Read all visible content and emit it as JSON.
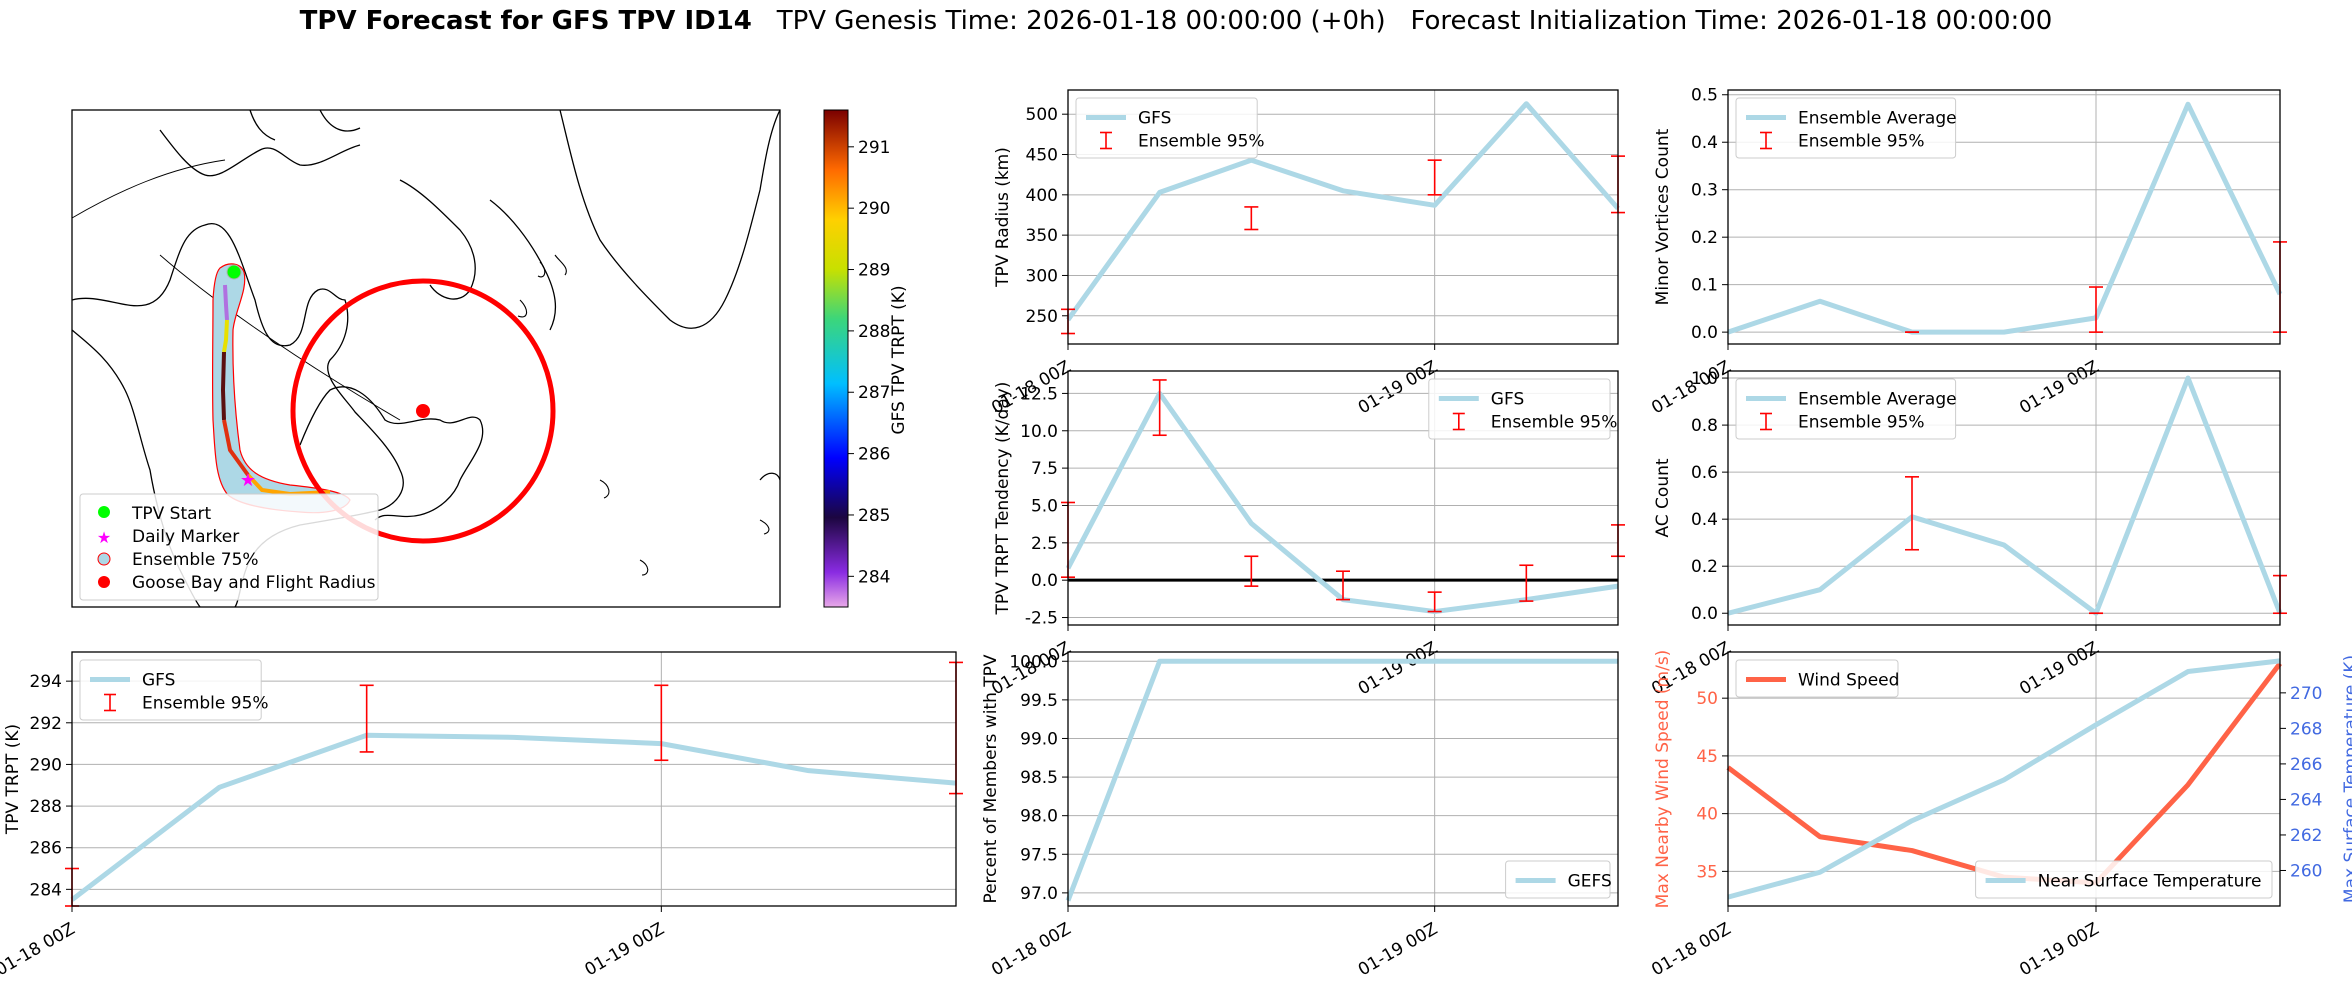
{
  "header": {
    "title_bold": "TPV Forecast for GFS TPV ID14",
    "genesis": "TPV Genesis Time: 2026-01-18 00:00:00 (+0h)",
    "init": "Forecast Initialization Time: 2026-01-18 00:00:00"
  },
  "colors": {
    "series": "#add8e6",
    "errorbar": "#ff0000",
    "wind": "#ff6347",
    "temp_axis": "#4169e1",
    "grid": "#b0b0b0"
  },
  "map": {
    "legend": [
      "TPV Start",
      "Daily Marker",
      "Ensemble 75%",
      "Goose Bay and Flight Radius"
    ],
    "legend_colors": [
      "#00ff00",
      "#ff00ff",
      "#add8e6",
      "#ff0000"
    ],
    "colorbar": {
      "label": "GFS TPV TRPT (K)",
      "ticks": [
        "284",
        "285",
        "286",
        "287",
        "288",
        "289",
        "290",
        "291"
      ],
      "min": 283.5,
      "max": 291.6
    }
  },
  "time_ticks": [
    "01-18 00Z",
    "01-19 00Z"
  ],
  "chart_data": [
    {
      "id": "radius",
      "type": "line",
      "ylabel": "TPV Radius (km)",
      "x": [
        0,
        1,
        2,
        3,
        4,
        5,
        6
      ],
      "ylim": [
        215,
        530
      ],
      "yticks": [
        250,
        300,
        350,
        400,
        450,
        500
      ],
      "series": [
        {
          "name": "GFS",
          "values": [
            245,
            403,
            443,
            405,
            387,
            513,
            383
          ]
        }
      ],
      "errorbars": [
        {
          "x": 0,
          "low": 228,
          "high": 258
        },
        {
          "x": 2,
          "low": 357,
          "high": 385
        },
        {
          "x": 4,
          "low": 400,
          "high": 443
        },
        {
          "x": 6,
          "low": 378,
          "high": 448
        }
      ],
      "legend": [
        "GFS",
        "Ensemble 95%"
      ],
      "legend_pos": "top-left",
      "xticklabels": [
        "01-18 00Z",
        "01-19 00Z"
      ]
    },
    {
      "id": "minor",
      "type": "line",
      "ylabel": "Minor Vortices Count",
      "x": [
        0,
        1,
        2,
        3,
        4,
        5,
        6
      ],
      "ylim": [
        -0.025,
        0.51
      ],
      "yticks": [
        0.0,
        0.1,
        0.2,
        0.3,
        0.4,
        0.5
      ],
      "series": [
        {
          "name": "Ensemble Average",
          "values": [
            0.0,
            0.065,
            0.0,
            0.0,
            0.03,
            0.48,
            0.08
          ]
        }
      ],
      "errorbars": [
        {
          "x": 2,
          "low": 0.0,
          "high": 0.0
        },
        {
          "x": 4,
          "low": 0.0,
          "high": 0.095
        },
        {
          "x": 6,
          "low": 0.0,
          "high": 0.19
        }
      ],
      "legend": [
        "Ensemble Average",
        "Ensemble 95%"
      ],
      "legend_pos": "top-left",
      "xticklabels": [
        "01-18 00Z",
        "01-19 00Z"
      ]
    },
    {
      "id": "tendency",
      "type": "line",
      "ylabel": "TPV TRPT Tendency (K/day)",
      "x": [
        0,
        1,
        2,
        3,
        4,
        5,
        6
      ],
      "ylim": [
        -3.0,
        14.0
      ],
      "yticks": [
        -2.5,
        0.0,
        2.5,
        5.0,
        7.5,
        10.0,
        12.5
      ],
      "zero_line": true,
      "series": [
        {
          "name": "GFS",
          "values": [
            0.8,
            12.5,
            3.8,
            -1.3,
            -2.1,
            -1.3,
            -0.4
          ]
        }
      ],
      "errorbars": [
        {
          "x": 0,
          "low": 0.2,
          "high": 5.2
        },
        {
          "x": 1,
          "low": 9.7,
          "high": 13.4
        },
        {
          "x": 2,
          "low": -0.4,
          "high": 1.6
        },
        {
          "x": 3,
          "low": -1.3,
          "high": 0.6
        },
        {
          "x": 4,
          "low": -2.1,
          "high": -0.8
        },
        {
          "x": 5,
          "low": -1.4,
          "high": 1.0
        },
        {
          "x": 6,
          "low": 1.6,
          "high": 3.7
        }
      ],
      "legend": [
        "GFS",
        "Ensemble 95%"
      ],
      "legend_pos": "top-right",
      "xticklabels": [
        "01-18 00Z",
        "01-19 00Z"
      ]
    },
    {
      "id": "ac",
      "type": "line",
      "ylabel": "AC Count",
      "x": [
        0,
        1,
        2,
        3,
        4,
        5,
        6
      ],
      "ylim": [
        -0.05,
        1.03
      ],
      "yticks": [
        0.0,
        0.2,
        0.4,
        0.6,
        0.8,
        1.0
      ],
      "series": [
        {
          "name": "Ensemble Average",
          "values": [
            0.0,
            0.1,
            0.41,
            0.29,
            0.0,
            1.0,
            0.0
          ]
        }
      ],
      "errorbars": [
        {
          "x": 2,
          "low": 0.27,
          "high": 0.58
        },
        {
          "x": 4,
          "low": 0.0,
          "high": 0.0
        },
        {
          "x": 6,
          "low": 0.0,
          "high": 0.16
        }
      ],
      "legend": [
        "Ensemble Average",
        "Ensemble 95%"
      ],
      "legend_pos": "top-left",
      "xticklabels": [
        "01-18 00Z",
        "01-19 00Z"
      ]
    },
    {
      "id": "trpt",
      "type": "line",
      "ylabel": "TPV TRPT (K)",
      "x": [
        0,
        1,
        2,
        3,
        4,
        5,
        6
      ],
      "ylim": [
        283.2,
        295.4
      ],
      "yticks": [
        284,
        286,
        288,
        290,
        292,
        294
      ],
      "series": [
        {
          "name": "GFS",
          "values": [
            283.5,
            288.9,
            291.4,
            291.3,
            291.0,
            289.7,
            289.1
          ]
        }
      ],
      "errorbars": [
        {
          "x": 0,
          "low": 283.2,
          "high": 285.0
        },
        {
          "x": 2,
          "low": 290.6,
          "high": 293.8
        },
        {
          "x": 4,
          "low": 290.2,
          "high": 293.8
        },
        {
          "x": 6,
          "low": 288.6,
          "high": 294.9
        }
      ],
      "legend": [
        "GFS",
        "Ensemble 95%"
      ],
      "legend_pos": "top-left",
      "xticklabels": [
        "01-18 00Z",
        "01-19 00Z"
      ]
    },
    {
      "id": "percent",
      "type": "line",
      "ylabel": "Percent of Members with TPV",
      "x": [
        0,
        1,
        2,
        3,
        4,
        5,
        6
      ],
      "ylim": [
        96.83,
        100.12
      ],
      "yticks": [
        97.0,
        97.5,
        98.0,
        98.5,
        99.0,
        99.5,
        100.0
      ],
      "series": [
        {
          "name": "GEFS",
          "values": [
            96.9,
            100.0,
            100.0,
            100.0,
            100.0,
            100.0,
            100.0
          ]
        }
      ],
      "errorbars": [],
      "legend": [
        "GEFS"
      ],
      "legend_pos": "bottom-right",
      "xticklabels": [
        "01-18 00Z",
        "01-19 00Z"
      ]
    },
    {
      "id": "wind",
      "type": "line",
      "ylabel": "Max Nearby Wind Speed (m/s)",
      "ylabel_right": "Max Surface Temperature (K)",
      "x": [
        0,
        1,
        2,
        3,
        4,
        5,
        6
      ],
      "ylim": [
        32.0,
        54.0
      ],
      "yticks": [
        35,
        40,
        45,
        50
      ],
      "ylim_right": [
        258.0,
        272.3
      ],
      "yticks_right": [
        260,
        262,
        264,
        266,
        268,
        270
      ],
      "series": [
        {
          "name": "Wind Speed",
          "axis": "left",
          "values": [
            44.0,
            38.0,
            36.8,
            34.5,
            34.0,
            42.5,
            53.0
          ]
        },
        {
          "name": "Near Surface Temperature",
          "axis": "right",
          "values": [
            258.5,
            259.9,
            262.8,
            265.1,
            268.2,
            271.2,
            271.8
          ]
        }
      ],
      "errorbars": [],
      "legend": [
        "Wind Speed"
      ],
      "legend_right": [
        "Near Surface Temperature"
      ],
      "xticklabels": [
        "01-18 00Z",
        "01-19 00Z"
      ]
    }
  ]
}
